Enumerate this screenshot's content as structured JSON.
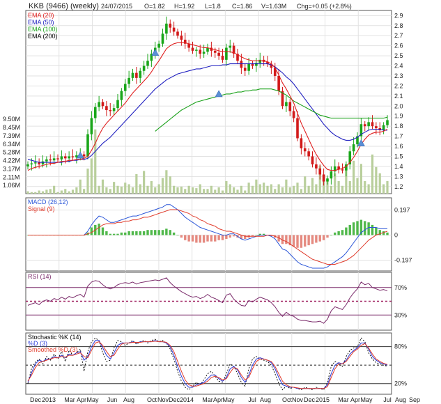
{
  "header": {
    "symbol": "KKB (9466)",
    "period": "(weekly)",
    "date": "24/07/2015",
    "open": "O=1.82",
    "high": "H=1.92",
    "low": "L=1.8",
    "close": "C=1.86",
    "volume": "V=1.63M",
    "change": "Chg=+0.05 (+2.8%)"
  },
  "colors": {
    "up": "#1aa61a",
    "down": "#d21a1a",
    "ema20": "#e02020",
    "ema50": "#2020c0",
    "ema100": "#18a018",
    "ema200": "#000000",
    "volume": "#b9cf9c",
    "macd": "#2b56d8",
    "signal": "#e03a2a",
    "rsi": "#7a2a6a",
    "stoch_k": "#000000",
    "stoch_d": "#2a3ad8",
    "stoch_smoothed": "#e03a2a"
  },
  "chart_data": [
    {
      "type": "candlestick",
      "panel": "price",
      "legend": [
        "EMA (20)",
        "EMA (50)",
        "EMA (100)",
        "EMA (200)"
      ],
      "price_ticks": [
        "2.9",
        "2.8",
        "2.7",
        "2.6",
        "2.5",
        "2.4",
        "2.3",
        "2.2",
        "2.1",
        "2.0",
        "1.9",
        "1.8",
        "1.7",
        "1.6",
        "1.5",
        "1.4",
        "1.3",
        "1.2"
      ],
      "price_range": [
        1.15,
        2.93
      ],
      "volume_ticks": [
        "9.50M",
        "8.45M",
        "7.39M",
        "6.34M",
        "5.28M",
        "4.22M",
        "3.17M",
        "2.11M",
        "1.06M"
      ],
      "volume_range": [
        0,
        10.5
      ],
      "x_ticks": [
        "Dec",
        "2013",
        "Mar",
        "Apr",
        "May",
        "Jun",
        "Aug",
        "Oct",
        "Nov",
        "Dec",
        "2014",
        "Mar",
        "Apr",
        "May",
        "Jul",
        "Aug",
        "Oct",
        "Nov",
        "Dec",
        "2015",
        "Mar",
        "Apr",
        "May",
        "Jul",
        "Aug",
        "Sep"
      ],
      "close": [
        1.42,
        1.43,
        1.44,
        1.42,
        1.45,
        1.47,
        1.46,
        1.48,
        1.47,
        1.5,
        1.48,
        1.5,
        1.49,
        1.51,
        1.52,
        1.5,
        1.72,
        1.88,
        1.99,
        2.04,
        2.0,
        1.96,
        1.95,
        1.98,
        2.06,
        2.15,
        2.22,
        2.28,
        2.33,
        2.28,
        2.35,
        2.4,
        2.45,
        2.52,
        2.58,
        2.62,
        2.72,
        2.82,
        2.78,
        2.74,
        2.7,
        2.66,
        2.62,
        2.58,
        2.55,
        2.56,
        2.52,
        2.54,
        2.58,
        2.55,
        2.53,
        2.5,
        2.46,
        2.58,
        2.6,
        2.52,
        2.45,
        2.38,
        2.35,
        2.42,
        2.4,
        2.43,
        2.46,
        2.44,
        2.42,
        2.38,
        2.3,
        2.15,
        2.0,
        2.04,
        1.95,
        1.88,
        1.68,
        1.58,
        1.55,
        1.5,
        1.42,
        1.38,
        1.32,
        1.25,
        1.28,
        1.35,
        1.4,
        1.37,
        1.36,
        1.42,
        1.55,
        1.62,
        1.7,
        1.82,
        1.8,
        1.84,
        1.8,
        1.78,
        1.76,
        1.81,
        1.86
      ],
      "ema20": [
        1.36,
        1.38,
        1.39,
        1.4,
        1.41,
        1.42,
        1.43,
        1.43,
        1.44,
        1.45,
        1.45,
        1.46,
        1.46,
        1.47,
        1.47,
        1.48,
        1.5,
        1.56,
        1.63,
        1.71,
        1.78,
        1.83,
        1.87,
        1.91,
        1.95,
        1.99,
        2.03,
        2.08,
        2.13,
        2.17,
        2.21,
        2.25,
        2.29,
        2.34,
        2.4,
        2.45,
        2.51,
        2.57,
        2.6,
        2.62,
        2.63,
        2.63,
        2.63,
        2.62,
        2.61,
        2.6,
        2.59,
        2.58,
        2.58,
        2.57,
        2.56,
        2.55,
        2.54,
        2.54,
        2.54,
        2.53,
        2.51,
        2.49,
        2.47,
        2.46,
        2.45,
        2.45,
        2.45,
        2.45,
        2.44,
        2.42,
        2.38,
        2.31,
        2.23,
        2.17,
        2.1,
        2.03,
        1.93,
        1.83,
        1.75,
        1.67,
        1.59,
        1.52,
        1.46,
        1.41,
        1.37,
        1.36,
        1.36,
        1.37,
        1.38,
        1.4,
        1.44,
        1.49,
        1.55,
        1.62,
        1.67,
        1.71,
        1.73,
        1.74,
        1.74,
        1.75,
        1.77
      ],
      "ema50": [
        1.47,
        1.46,
        1.45,
        1.44,
        1.44,
        1.44,
        1.44,
        1.44,
        1.44,
        1.44,
        1.45,
        1.45,
        1.46,
        1.46,
        1.47,
        1.47,
        1.48,
        1.51,
        1.55,
        1.59,
        1.63,
        1.66,
        1.69,
        1.73,
        1.77,
        1.81,
        1.85,
        1.89,
        1.93,
        1.97,
        2.01,
        2.05,
        2.09,
        2.13,
        2.17,
        2.2,
        2.23,
        2.26,
        2.28,
        2.3,
        2.32,
        2.33,
        2.34,
        2.35,
        2.36,
        2.37,
        2.37,
        2.38,
        2.39,
        2.4,
        2.4,
        2.4,
        2.41,
        2.41,
        2.42,
        2.42,
        2.42,
        2.42,
        2.42,
        2.42,
        2.42,
        2.42,
        2.42,
        2.42,
        2.42,
        2.41,
        2.39,
        2.36,
        2.33,
        2.29,
        2.26,
        2.22,
        2.17,
        2.12,
        2.07,
        2.02,
        1.97,
        1.92,
        1.87,
        1.82,
        1.78,
        1.74,
        1.71,
        1.69,
        1.67,
        1.66,
        1.66,
        1.67,
        1.69,
        1.72,
        1.74,
        1.76,
        1.77,
        1.77,
        1.77,
        1.76,
        1.76
      ],
      "ema100_start_index": 34,
      "ema100": [
        1.75,
        1.78,
        1.81,
        1.84,
        1.87,
        1.9,
        1.93,
        1.96,
        1.98,
        2.0,
        2.02,
        2.04,
        2.05,
        2.06,
        2.07,
        2.08,
        2.09,
        2.1,
        2.11,
        2.12,
        2.12,
        2.13,
        2.14,
        2.14,
        2.15,
        2.15,
        2.16,
        2.16,
        2.17,
        2.17,
        2.17,
        2.17,
        2.16,
        2.15,
        2.13,
        2.11,
        2.08,
        2.05,
        2.03,
        2.01,
        1.99,
        1.97,
        1.95,
        1.93,
        1.91,
        1.9,
        1.89,
        1.88,
        1.88,
        1.88,
        1.88,
        1.88,
        1.88,
        1.88,
        1.88,
        1.88,
        1.88,
        1.88,
        1.88,
        1.88,
        1.88,
        1.88,
        1.89
      ],
      "arrows": [
        {
          "index": 14,
          "price": 1.51
        },
        {
          "index": 34,
          "price": 2.53
        },
        {
          "index": 51,
          "price": 2.12
        },
        {
          "index": 89,
          "price": 1.63
        }
      ]
    },
    {
      "type": "bar",
      "panel": "macd",
      "legend": [
        "MACD (26,12)",
        "Signal (9)"
      ],
      "y_ticks": [
        "0.197",
        "0",
        "-0.197"
      ],
      "y_range": [
        -0.26,
        0.26
      ],
      "macd": [
        0.0,
        0.0,
        0.0,
        0.0,
        0.0,
        0.0,
        0.0,
        0.0,
        0.0,
        0.0,
        0.0,
        0.0,
        0.0,
        0.0,
        0.0,
        0.0,
        0.03,
        0.08,
        0.12,
        0.15,
        0.14,
        0.12,
        0.1,
        0.1,
        0.11,
        0.12,
        0.13,
        0.14,
        0.15,
        0.15,
        0.16,
        0.17,
        0.18,
        0.19,
        0.2,
        0.21,
        0.22,
        0.24,
        0.24,
        0.22,
        0.2,
        0.17,
        0.14,
        0.12,
        0.1,
        0.08,
        0.06,
        0.05,
        0.04,
        0.03,
        0.02,
        0.01,
        0.0,
        0.0,
        0.01,
        0.01,
        -0.01,
        -0.03,
        -0.04,
        -0.03,
        -0.02,
        -0.01,
        0.0,
        0.0,
        0.0,
        -0.01,
        -0.03,
        -0.07,
        -0.11,
        -0.12,
        -0.15,
        -0.18,
        -0.21,
        -0.23,
        -0.24,
        -0.25,
        -0.26,
        -0.26,
        -0.26,
        -0.26,
        -0.25,
        -0.23,
        -0.21,
        -0.19,
        -0.17,
        -0.14,
        -0.1,
        -0.06,
        -0.02,
        0.02,
        0.04,
        0.06,
        0.06,
        0.06,
        0.05,
        0.05,
        0.05
      ],
      "signal": [
        0.0,
        0.0,
        0.0,
        0.0,
        0.0,
        0.0,
        0.0,
        0.0,
        0.0,
        0.0,
        0.0,
        0.0,
        0.0,
        0.0,
        0.0,
        0.0,
        0.01,
        0.02,
        0.04,
        0.06,
        0.08,
        0.09,
        0.09,
        0.09,
        0.1,
        0.1,
        0.11,
        0.11,
        0.12,
        0.12,
        0.13,
        0.14,
        0.14,
        0.15,
        0.16,
        0.17,
        0.18,
        0.19,
        0.2,
        0.2,
        0.2,
        0.19,
        0.18,
        0.17,
        0.15,
        0.14,
        0.12,
        0.11,
        0.09,
        0.08,
        0.07,
        0.05,
        0.04,
        0.03,
        0.03,
        0.02,
        0.01,
        0.0,
        -0.01,
        -0.01,
        -0.01,
        -0.01,
        -0.01,
        -0.01,
        0.0,
        0.0,
        -0.01,
        -0.02,
        -0.04,
        -0.05,
        -0.07,
        -0.09,
        -0.11,
        -0.13,
        -0.15,
        -0.17,
        -0.19,
        -0.2,
        -0.21,
        -0.22,
        -0.23,
        -0.23,
        -0.23,
        -0.22,
        -0.21,
        -0.2,
        -0.18,
        -0.16,
        -0.13,
        -0.1,
        -0.07,
        -0.04,
        -0.02,
        0.0,
        0.01,
        0.02,
        0.03
      ]
    },
    {
      "type": "line",
      "panel": "rsi",
      "legend": [
        "RSI (14)"
      ],
      "y_ticks": [
        "70%",
        "30%"
      ],
      "y_range": [
        10,
        90
      ],
      "levels": [
        70,
        50,
        30
      ],
      "values": [
        44,
        46,
        48,
        45,
        50,
        52,
        50,
        54,
        52,
        56,
        53,
        57,
        55,
        58,
        60,
        56,
        72,
        78,
        80,
        79,
        74,
        70,
        68,
        70,
        74,
        76,
        77,
        76,
        78,
        75,
        77,
        78,
        79,
        80,
        81,
        80,
        82,
        84,
        77,
        72,
        68,
        64,
        61,
        58,
        56,
        57,
        54,
        56,
        60,
        56,
        54,
        51,
        48,
        59,
        61,
        53,
        48,
        44,
        43,
        51,
        49,
        53,
        56,
        54,
        52,
        48,
        42,
        34,
        28,
        34,
        30,
        28,
        24,
        22,
        22,
        21,
        20,
        20,
        21,
        18,
        24,
        36,
        42,
        40,
        38,
        45,
        55,
        62,
        68,
        78,
        74,
        76,
        70,
        68,
        66,
        67,
        65
      ]
    },
    {
      "type": "line",
      "panel": "stochastic",
      "legend": [
        "Stochastic %K (14)",
        "%D (3)",
        "Smoothed %D (3)"
      ],
      "y_ticks": [
        "80%",
        "20%"
      ],
      "y_range": [
        5,
        100
      ],
      "levels": [
        80,
        50,
        20
      ],
      "k": [
        20,
        45,
        55,
        60,
        52,
        64,
        58,
        68,
        60,
        72,
        56,
        74,
        66,
        70,
        76,
        40,
        72,
        88,
        94,
        90,
        70,
        56,
        58,
        78,
        90,
        88,
        82,
        86,
        90,
        84,
        88,
        90,
        86,
        90,
        92,
        88,
        90,
        86,
        76,
        60,
        40,
        24,
        14,
        10,
        16,
        22,
        18,
        26,
        36,
        40,
        32,
        24,
        22,
        36,
        52,
        48,
        36,
        22,
        16,
        44,
        60,
        64,
        60,
        58,
        56,
        50,
        36,
        20,
        10,
        16,
        12,
        14,
        12,
        10,
        14,
        12,
        10,
        14,
        12,
        10,
        22,
        48,
        56,
        52,
        48,
        64,
        74,
        78,
        80,
        94,
        88,
        70,
        60,
        54,
        52,
        50,
        48
      ],
      "d": [
        22,
        38,
        52,
        58,
        56,
        60,
        60,
        64,
        62,
        66,
        62,
        68,
        66,
        70,
        72,
        58,
        64,
        80,
        90,
        90,
        78,
        66,
        60,
        70,
        82,
        86,
        86,
        86,
        88,
        86,
        88,
        88,
        88,
        88,
        90,
        88,
        88,
        86,
        80,
        66,
        48,
        32,
        20,
        14,
        14,
        18,
        20,
        22,
        28,
        34,
        34,
        28,
        24,
        30,
        44,
        48,
        42,
        30,
        22,
        34,
        50,
        60,
        62,
        60,
        58,
        54,
        44,
        30,
        18,
        16,
        14,
        14,
        12,
        12,
        12,
        12,
        12,
        12,
        12,
        12,
        18,
        36,
        50,
        54,
        52,
        58,
        68,
        74,
        78,
        86,
        86,
        76,
        64,
        58,
        54,
        52,
        50
      ],
      "smoothed_d": [
        24,
        34,
        46,
        54,
        56,
        58,
        60,
        62,
        62,
        64,
        63,
        66,
        66,
        68,
        70,
        64,
        62,
        74,
        86,
        88,
        82,
        72,
        64,
        66,
        76,
        84,
        86,
        86,
        87,
        87,
        87,
        88,
        88,
        88,
        89,
        88,
        88,
        87,
        82,
        72,
        56,
        40,
        26,
        18,
        16,
        16,
        18,
        20,
        24,
        30,
        32,
        30,
        26,
        28,
        38,
        46,
        44,
        34,
        26,
        30,
        44,
        56,
        60,
        60,
        58,
        56,
        48,
        36,
        24,
        18,
        15,
        14,
        13,
        12,
        12,
        12,
        12,
        12,
        12,
        12,
        15,
        30,
        44,
        52,
        52,
        56,
        64,
        72,
        76,
        82,
        85,
        78,
        68,
        60,
        56,
        53,
        51
      ]
    }
  ]
}
